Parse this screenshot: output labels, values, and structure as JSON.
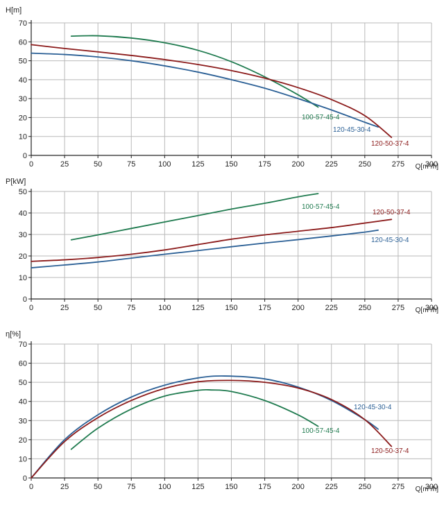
{
  "charts": [
    {
      "type": "line",
      "ylabel": "H[m]",
      "xlabel": "Q[m³/h]",
      "xlim": [
        0,
        300
      ],
      "ylim": [
        0,
        70
      ],
      "xticks": [
        0,
        25,
        50,
        75,
        100,
        125,
        150,
        175,
        200,
        225,
        250,
        275,
        300
      ],
      "yticks": [
        0,
        10,
        20,
        30,
        40,
        50,
        60,
        70
      ],
      "grid": true,
      "series": [
        {
          "name": "100-57-45-4",
          "color": "#1e7a4e",
          "x": [
            30,
            50,
            75,
            100,
            125,
            150,
            175,
            200,
            215
          ],
          "y": [
            63,
            63.2,
            62,
            59.5,
            55.5,
            49.5,
            41.5,
            32,
            25.5
          ]
        },
        {
          "name": "120-45-30-4",
          "color": "#2a5f95",
          "x": [
            0,
            25,
            50,
            75,
            100,
            125,
            150,
            175,
            200,
            225,
            250,
            260
          ],
          "y": [
            54,
            53.3,
            52,
            50,
            47.3,
            44,
            40,
            35.5,
            30,
            24,
            17.5,
            15
          ]
        },
        {
          "name": "120-50-37-4",
          "color": "#8b1a1a",
          "x": [
            0,
            25,
            50,
            75,
            100,
            125,
            150,
            175,
            200,
            225,
            250,
            270
          ],
          "y": [
            58.5,
            56.5,
            54.7,
            52.8,
            50.6,
            48,
            44.8,
            40.8,
            35.8,
            29.5,
            21,
            9.5
          ]
        }
      ]
    },
    {
      "type": "line",
      "ylabel": "P[kW]",
      "xlabel": "Q[m³/h]",
      "xlim": [
        0,
        300
      ],
      "ylim": [
        0,
        50
      ],
      "xticks": [
        0,
        25,
        50,
        75,
        100,
        125,
        150,
        175,
        200,
        225,
        250,
        275,
        300
      ],
      "yticks": [
        0,
        10,
        20,
        30,
        40,
        50
      ],
      "grid": true,
      "series": [
        {
          "name": "100-57-45-4",
          "color": "#1e7a4e",
          "x": [
            30,
            50,
            75,
            100,
            125,
            150,
            175,
            200,
            215
          ],
          "y": [
            27.5,
            29.8,
            32.8,
            35.8,
            38.8,
            41.8,
            44.5,
            47.5,
            49
          ]
        },
        {
          "name": "120-50-37-4",
          "color": "#8b1a1a",
          "x": [
            0,
            25,
            50,
            75,
            100,
            125,
            150,
            175,
            200,
            225,
            250,
            270
          ],
          "y": [
            17.5,
            18.2,
            19.3,
            20.8,
            22.8,
            25.3,
            27.8,
            29.8,
            31.5,
            33.2,
            35.3,
            37
          ]
        },
        {
          "name": "120-45-30-4",
          "color": "#2a5f95",
          "x": [
            0,
            25,
            50,
            75,
            100,
            125,
            150,
            175,
            200,
            225,
            250,
            260
          ],
          "y": [
            14.5,
            15.8,
            17.2,
            19,
            20.8,
            22.5,
            24.3,
            26,
            27.6,
            29.3,
            31.1,
            32
          ]
        }
      ]
    },
    {
      "type": "line",
      "ylabel": "η[%]",
      "xlabel": "Q[m³/h]",
      "xlim": [
        0,
        300
      ],
      "ylim": [
        0,
        70
      ],
      "xticks": [
        0,
        25,
        50,
        75,
        100,
        125,
        150,
        175,
        200,
        225,
        250,
        275,
        300
      ],
      "yticks": [
        0,
        10,
        20,
        30,
        40,
        50,
        60,
        70
      ],
      "grid": true,
      "series": [
        {
          "name": "120-45-30-4",
          "color": "#2a5f95",
          "x": [
            0,
            25,
            50,
            75,
            100,
            125,
            145,
            175,
            200,
            225,
            250,
            260
          ],
          "y": [
            0,
            20,
            33,
            42.3,
            48.5,
            52.3,
            53.3,
            51.8,
            47.5,
            40.5,
            30.5,
            25.5
          ]
        },
        {
          "name": "120-50-37-4",
          "color": "#8b1a1a",
          "x": [
            0,
            25,
            50,
            75,
            100,
            125,
            150,
            175,
            200,
            225,
            250,
            270
          ],
          "y": [
            0,
            19,
            31.5,
            40.5,
            46.8,
            50.3,
            51,
            50,
            47,
            41,
            30.5,
            16.5
          ]
        },
        {
          "name": "100-57-45-4",
          "color": "#1e7a4e",
          "x": [
            30,
            50,
            75,
            100,
            125,
            135,
            150,
            175,
            200,
            215
          ],
          "y": [
            15,
            26,
            36,
            42.8,
            45.8,
            46,
            45.2,
            40.5,
            33,
            27
          ]
        }
      ]
    }
  ],
  "chart_data": [
    {
      "type": "line",
      "title": "",
      "ylabel": "H[m]",
      "xlabel": "Q[m³/h]",
      "xlim": [
        0,
        300
      ],
      "ylim": [
        0,
        70
      ]
    },
    {
      "type": "line",
      "title": "",
      "ylabel": "P[kW]",
      "xlabel": "Q[m³/h]",
      "xlim": [
        0,
        300
      ],
      "ylim": [
        0,
        50
      ]
    },
    {
      "type": "line",
      "title": "",
      "ylabel": "η[%]",
      "xlabel": "Q[m³/h]",
      "xlim": [
        0,
        300
      ],
      "ylim": [
        0,
        70
      ]
    }
  ]
}
